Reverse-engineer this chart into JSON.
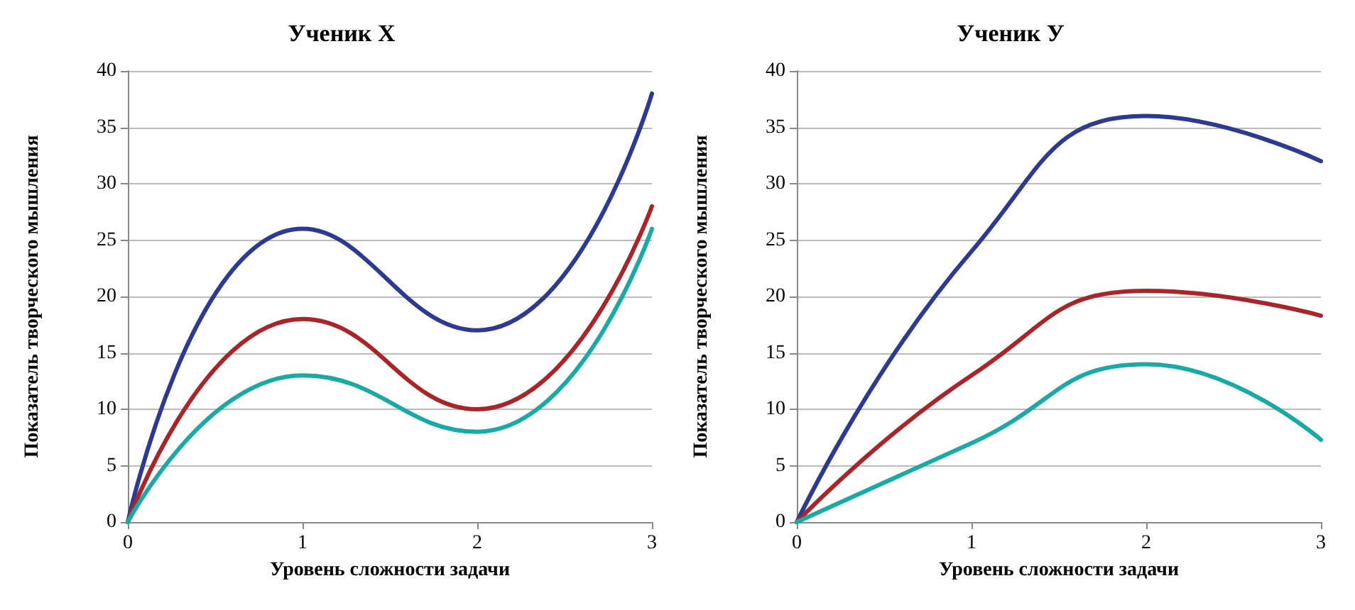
{
  "chart_data": [
    {
      "type": "line",
      "title": "Ученик X",
      "xlabel": "Уровень сложности задачи",
      "ylabel": "Показатель творческого мышления",
      "x": [
        0,
        1,
        2,
        3
      ],
      "xlim": [
        0,
        3
      ],
      "xticks": [
        0,
        1,
        2,
        3
      ],
      "ylim": [
        0,
        40
      ],
      "yticks": [
        0,
        5,
        10,
        15,
        20,
        25,
        30,
        35,
        40
      ],
      "grid": "y",
      "marker": "none",
      "line_style": "solid",
      "series": [
        {
          "color": "#2e3a8f",
          "values": [
            0,
            26,
            17,
            38
          ]
        },
        {
          "color": "#a8262a",
          "values": [
            0,
            18,
            10,
            28
          ]
        },
        {
          "color": "#1aaaa6",
          "values": [
            0,
            13,
            8,
            26
          ]
        }
      ]
    },
    {
      "type": "line",
      "title": "Ученик У",
      "xlabel": "Уровень сложности задачи",
      "ylabel": "Показатель творческого мышления",
      "x": [
        0,
        1,
        2,
        3
      ],
      "xlim": [
        0,
        3
      ],
      "xticks": [
        0,
        1,
        2,
        3
      ],
      "ylim": [
        0,
        40
      ],
      "yticks": [
        0,
        5,
        10,
        15,
        20,
        25,
        30,
        35,
        40
      ],
      "grid": "y",
      "marker": "none",
      "line_style": "solid",
      "series": [
        {
          "color": "#2e3a8f",
          "values": [
            0,
            24,
            36,
            32
          ]
        },
        {
          "color": "#a8262a",
          "values": [
            0,
            13,
            20.5,
            18.3
          ]
        },
        {
          "color": "#1aaaa6",
          "values": [
            0,
            7,
            14,
            7.3
          ]
        }
      ]
    }
  ]
}
